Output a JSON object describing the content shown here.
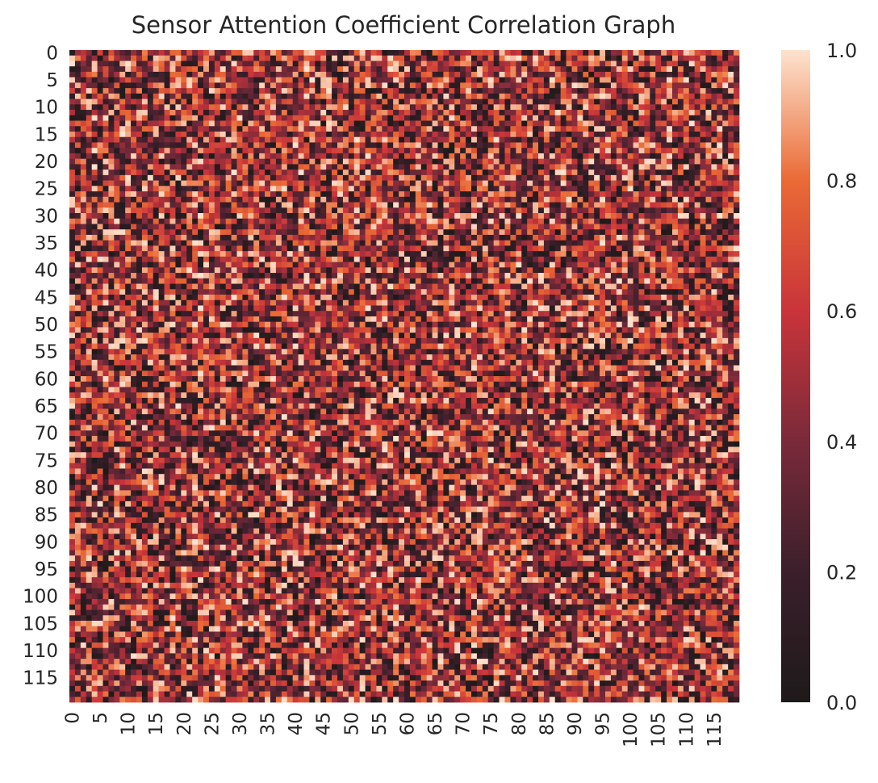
{
  "chart_data": {
    "type": "heatmap",
    "title": "Sensor Attention Coefficient Correlation Graph",
    "rows": 120,
    "cols": 120,
    "xlabel": "",
    "ylabel": "",
    "x_tick_labels": [
      "0",
      "5",
      "10",
      "15",
      "20",
      "25",
      "30",
      "35",
      "40",
      "45",
      "50",
      "55",
      "60",
      "65",
      "70",
      "75",
      "80",
      "85",
      "90",
      "95",
      "100",
      "105",
      "110",
      "115"
    ],
    "y_tick_labels": [
      "0",
      "5",
      "10",
      "15",
      "20",
      "25",
      "30",
      "35",
      "40",
      "45",
      "50",
      "55",
      "60",
      "65",
      "70",
      "75",
      "80",
      "85",
      "90",
      "95",
      "100",
      "105",
      "110",
      "115"
    ],
    "value_range": [
      0.0,
      1.0
    ],
    "values_note": "cell values appear as pseudo-random noise uniformly spread over 0.0-1.0; individual cell values are not legible",
    "colormap": "rocket",
    "colormap_stops": [
      {
        "value": 0.0,
        "color": "#1e1a1a"
      },
      {
        "value": 0.2,
        "color": "#3b1f2b"
      },
      {
        "value": 0.4,
        "color": "#7a2a3a"
      },
      {
        "value": 0.6,
        "color": "#c9343a"
      },
      {
        "value": 0.8,
        "color": "#ea6a35"
      },
      {
        "value": 1.0,
        "color": "#fde3cf"
      }
    ],
    "colorbar_ticks": [
      "0.0",
      "0.2",
      "0.4",
      "0.6",
      "0.8",
      "1.0"
    ],
    "grid": false,
    "legend": "colorbar-right"
  }
}
